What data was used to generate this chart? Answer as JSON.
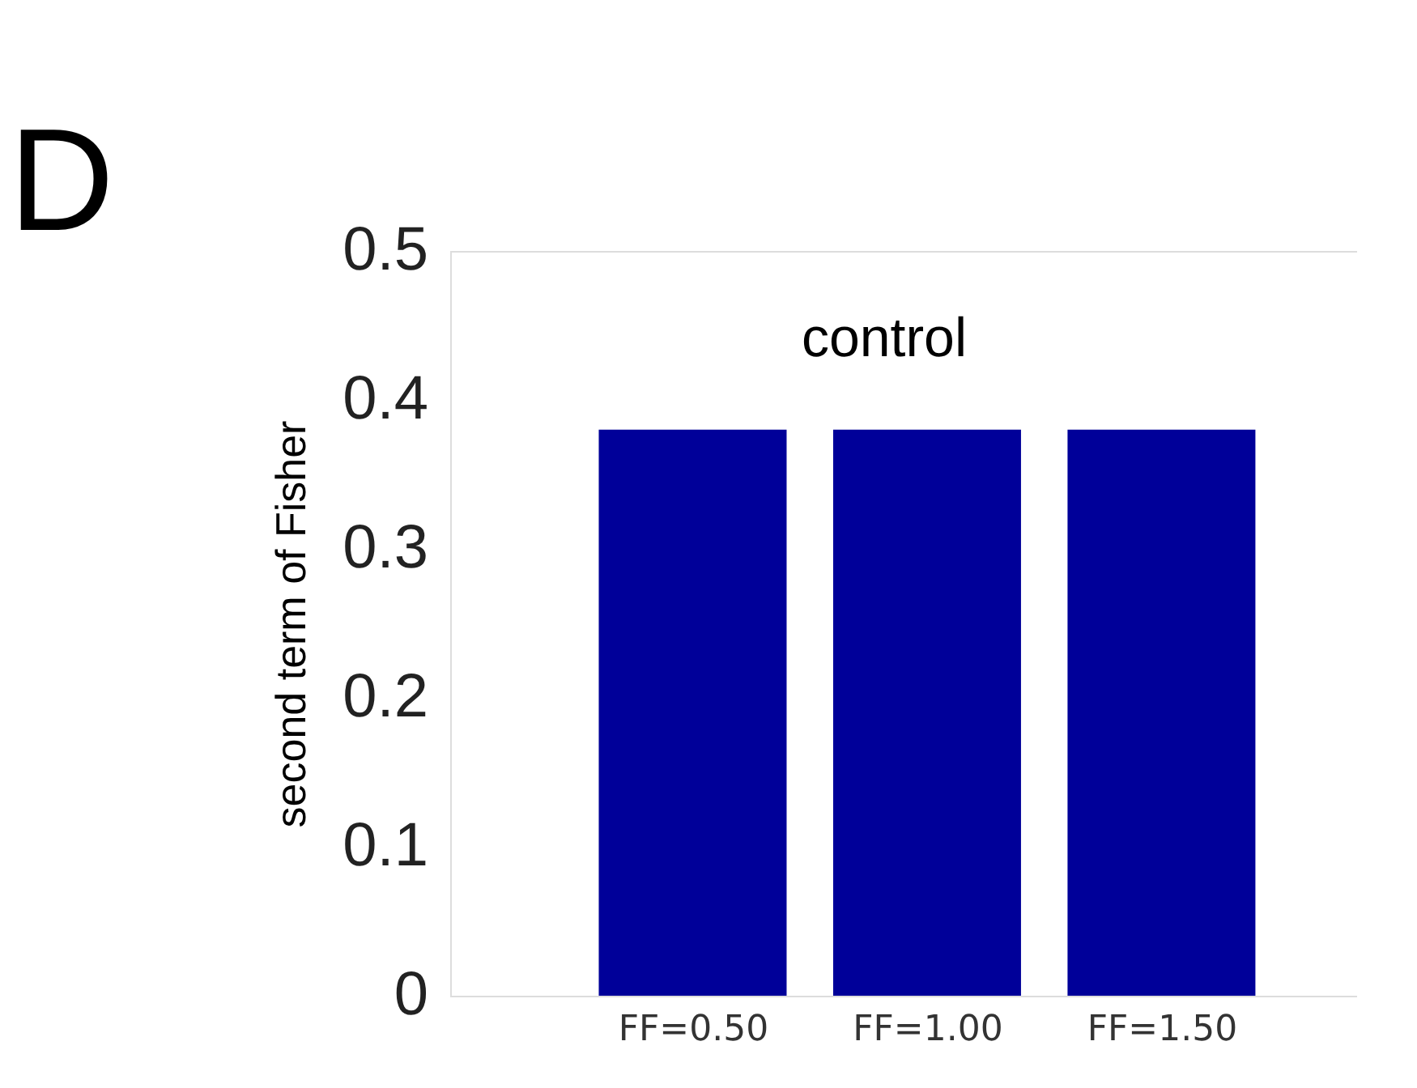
{
  "chart_data": {
    "type": "bar",
    "ylabel": "second term of Fisher",
    "categories": [
      "FF=0.50",
      "FF=1.00",
      "FF=1.50"
    ],
    "values": [
      0.38,
      0.38,
      0.38
    ],
    "color": "#000099",
    "ylim": [
      0,
      0.5
    ],
    "yticks": [
      {
        "value": 0,
        "label": "0"
      },
      0.1,
      0.2,
      0.3,
      0.4,
      0.5
    ],
    "grid": false,
    "annotations": [
      "D",
      "control"
    ]
  }
}
